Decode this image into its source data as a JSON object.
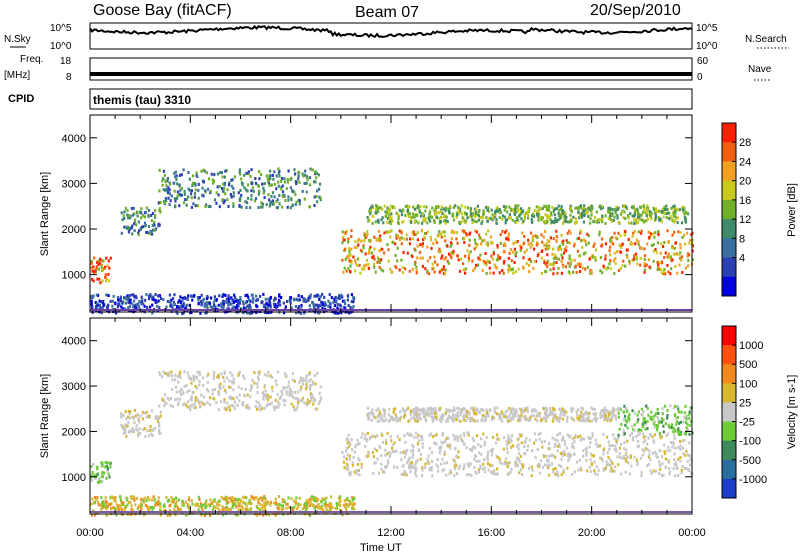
{
  "header": {
    "station": "Goose Bay (fitACF)",
    "beam": "Beam 07",
    "date": "20/Sep/2010"
  },
  "strips": {
    "nsky_label": "N.Sky",
    "nsky_ticks": [
      "10^5",
      "10^0"
    ],
    "nsearch_label": "N.Search",
    "nsearch_ticks": [
      "10^5",
      "10^0"
    ],
    "freq_label": "Freq.",
    "freq_unit": "[MHz]",
    "freq_ticks": [
      "18",
      "8"
    ],
    "nave_label": "Nave",
    "nave_ticks": [
      "60",
      "0"
    ],
    "cpid_label": "CPID",
    "cpid_value": "themis (tau) 3310"
  },
  "chart_data": [
    {
      "type": "heatmap",
      "panel": "power",
      "ylabel": "Slant Range [km]",
      "xlabel": "",
      "y_ticks": [
        1000,
        2000,
        3000,
        4000
      ],
      "ylim": [
        180,
        4500
      ],
      "x_ticks": [
        "00:00",
        "04:00",
        "08:00",
        "12:00",
        "16:00",
        "20:00",
        "00:00"
      ],
      "xlim_hours": [
        0,
        24
      ],
      "colorbar": {
        "label": "Power [dB]",
        "ticks": [
          "28",
          "24",
          "20",
          "16",
          "12",
          "8",
          "4"
        ],
        "colors": [
          "#0000e0",
          "#2a3fb0",
          "#3b6fa0",
          "#3e8a6a",
          "#6fb02a",
          "#c8c81e",
          "#f0a020",
          "#f06010",
          "#ff2000"
        ]
      },
      "regions": [
        {
          "t0": 2.7,
          "t1": 9.2,
          "r0": 2500,
          "r1": 3350,
          "level": "low-mid"
        },
        {
          "t0": 1.2,
          "t1": 2.8,
          "r0": 1900,
          "r1": 2500,
          "level": "low-mid"
        },
        {
          "t0": 0.0,
          "t1": 0.8,
          "r0": 850,
          "r1": 1400,
          "level": "high"
        },
        {
          "t0": 10.0,
          "t1": 24.0,
          "r0": 1050,
          "r1": 2000,
          "level": "high"
        },
        {
          "t0": 11.0,
          "t1": 23.8,
          "r0": 2150,
          "r1": 2550,
          "level": "mid"
        },
        {
          "t0": 0.0,
          "t1": 10.5,
          "r0": 180,
          "r1": 600,
          "level": "low"
        }
      ]
    },
    {
      "type": "heatmap",
      "panel": "velocity",
      "ylabel": "Slant Range [km]",
      "xlabel": "Time UT",
      "y_ticks": [
        1000,
        2000,
        3000,
        4000
      ],
      "ylim": [
        180,
        4500
      ],
      "x_ticks": [
        "00:00",
        "04:00",
        "08:00",
        "12:00",
        "16:00",
        "20:00",
        "00:00"
      ],
      "xlim_hours": [
        0,
        24
      ],
      "colorbar": {
        "label": "Velocity [m s-1]",
        "ticks": [
          "1000",
          "500",
          "100",
          "25",
          "-25",
          "-100",
          "-500",
          "-1000"
        ],
        "colors": [
          "#1a3cc8",
          "#2a6ea0",
          "#3e8a5a",
          "#6ecb3a",
          "#c8c8c8",
          "#d8b830",
          "#f08a1e",
          "#ff5010",
          "#ff0000"
        ]
      },
      "regions": [
        {
          "t0": 2.7,
          "t1": 9.2,
          "r0": 2500,
          "r1": 3350,
          "level": "grey"
        },
        {
          "t0": 1.2,
          "t1": 2.8,
          "r0": 1900,
          "r1": 2500,
          "level": "grey"
        },
        {
          "t0": 0.0,
          "t1": 0.8,
          "r0": 900,
          "r1": 1350,
          "level": "green"
        },
        {
          "t0": 10.0,
          "t1": 24.0,
          "r0": 1050,
          "r1": 2000,
          "level": "grey"
        },
        {
          "t0": 11.0,
          "t1": 21.0,
          "r0": 2250,
          "r1": 2550,
          "level": "grey"
        },
        {
          "t0": 21.0,
          "t1": 24.0,
          "r0": 1950,
          "r1": 2600,
          "level": "green"
        },
        {
          "t0": 0.0,
          "t1": 10.5,
          "r0": 180,
          "r1": 600,
          "level": "yellow"
        }
      ]
    }
  ]
}
